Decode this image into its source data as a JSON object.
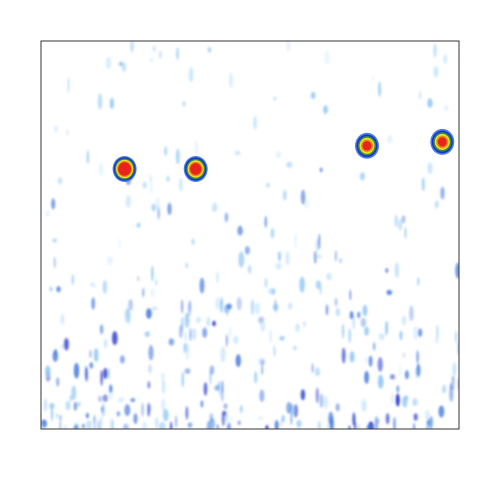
{
  "chart_data": {
    "type": "heatmap",
    "axes_visible": false,
    "grid": false,
    "legend": "none",
    "x_range": [
      0,
      1
    ],
    "y_range": [
      0,
      1
    ],
    "colormap": [
      "#c8e6ff",
      "#8ec5f5",
      "#4d7fe0",
      "#1d2fd0",
      "#2e8f4a",
      "#f0e020",
      "#f08a20",
      "#e8241c"
    ],
    "hotspots": [
      {
        "x": 0.2,
        "y": 0.67,
        "intensity": 1.0
      },
      {
        "x": 0.37,
        "y": 0.67,
        "intensity": 0.85
      },
      {
        "x": 0.78,
        "y": 0.73,
        "intensity": 0.65
      },
      {
        "x": 0.96,
        "y": 0.74,
        "intensity": 0.7
      }
    ],
    "noise": {
      "density_bottom": 1.0,
      "density_top": 0.2,
      "max_intensity": 0.45
    }
  }
}
